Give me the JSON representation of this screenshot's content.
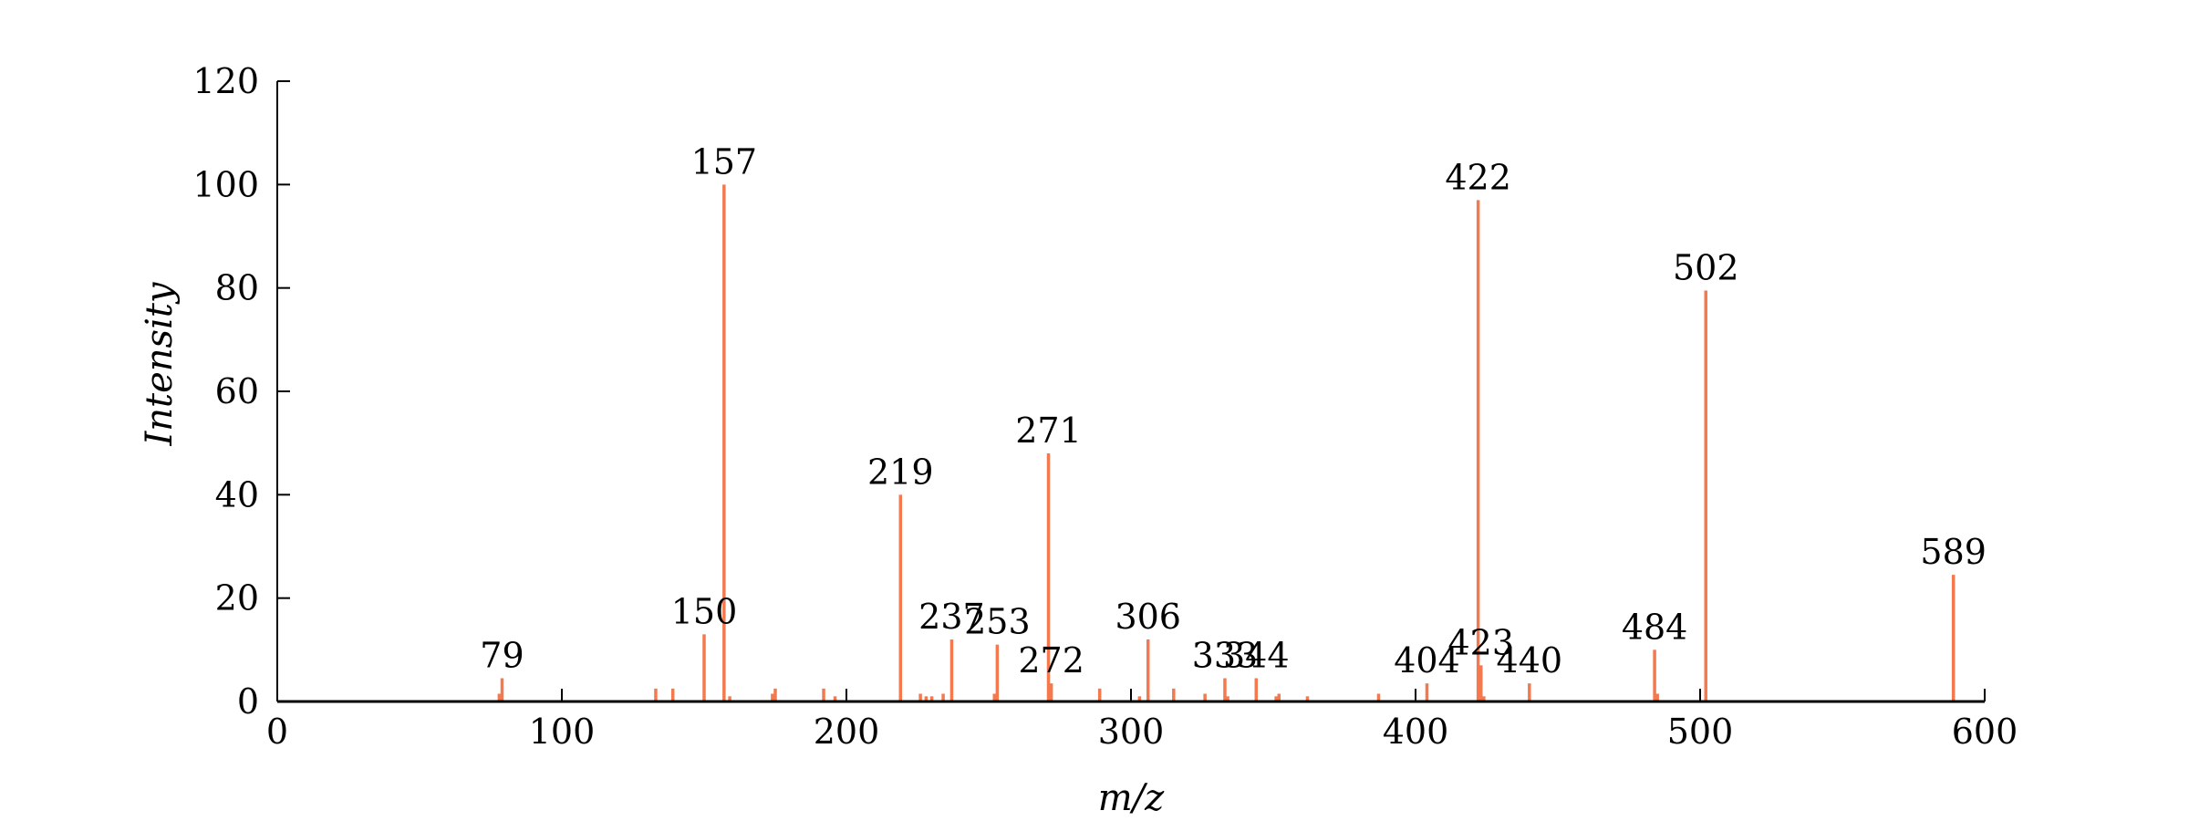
{
  "chart_data": {
    "type": "bar",
    "xlabel": "m/z",
    "ylabel": "Intensity",
    "xlim": [
      0,
      600
    ],
    "ylim": [
      0,
      120
    ],
    "xticks": [
      0,
      100,
      200,
      300,
      400,
      500,
      600
    ],
    "yticks": [
      0,
      20,
      40,
      60,
      80,
      100,
      120
    ],
    "grid": false,
    "bar_color": "#f4794e",
    "peaks": [
      {
        "x": 78,
        "y": 1.5
      },
      {
        "x": 79,
        "y": 4.5,
        "label": "79"
      },
      {
        "x": 133,
        "y": 2.5
      },
      {
        "x": 139,
        "y": 2.5
      },
      {
        "x": 150,
        "y": 13.0,
        "label": "150"
      },
      {
        "x": 157,
        "y": 100.0,
        "label": "157"
      },
      {
        "x": 159,
        "y": 1.0
      },
      {
        "x": 174,
        "y": 1.5
      },
      {
        "x": 175,
        "y": 2.5
      },
      {
        "x": 192,
        "y": 2.5
      },
      {
        "x": 196,
        "y": 1.0
      },
      {
        "x": 219,
        "y": 40.0,
        "label": "219"
      },
      {
        "x": 226,
        "y": 1.5
      },
      {
        "x": 228,
        "y": 1.0
      },
      {
        "x": 230,
        "y": 1.0
      },
      {
        "x": 234,
        "y": 1.5
      },
      {
        "x": 237,
        "y": 12.0,
        "label": "237"
      },
      {
        "x": 252,
        "y": 1.5
      },
      {
        "x": 253,
        "y": 11.0,
        "label": "253"
      },
      {
        "x": 271,
        "y": 48.0,
        "label": "271"
      },
      {
        "x": 272,
        "y": 3.5,
        "label": "272"
      },
      {
        "x": 289,
        "y": 2.5
      },
      {
        "x": 303,
        "y": 1.0
      },
      {
        "x": 306,
        "y": 12.0,
        "label": "306"
      },
      {
        "x": 315,
        "y": 2.5
      },
      {
        "x": 326,
        "y": 1.5
      },
      {
        "x": 333,
        "y": 4.5,
        "label": "333"
      },
      {
        "x": 334,
        "y": 1.0
      },
      {
        "x": 344,
        "y": 4.5,
        "label": "344"
      },
      {
        "x": 351,
        "y": 1.0
      },
      {
        "x": 352,
        "y": 1.5
      },
      {
        "x": 362,
        "y": 1.0
      },
      {
        "x": 387,
        "y": 1.5
      },
      {
        "x": 404,
        "y": 3.5,
        "label": "404"
      },
      {
        "x": 422,
        "y": 97.0,
        "label": "422"
      },
      {
        "x": 423,
        "y": 7.0,
        "label": "423"
      },
      {
        "x": 424,
        "y": 1.0
      },
      {
        "x": 440,
        "y": 3.5,
        "label": "440"
      },
      {
        "x": 484,
        "y": 10.0,
        "label": "484"
      },
      {
        "x": 485,
        "y": 1.5
      },
      {
        "x": 502,
        "y": 79.5,
        "label": "502"
      },
      {
        "x": 589,
        "y": 24.5,
        "label": "589"
      }
    ]
  }
}
